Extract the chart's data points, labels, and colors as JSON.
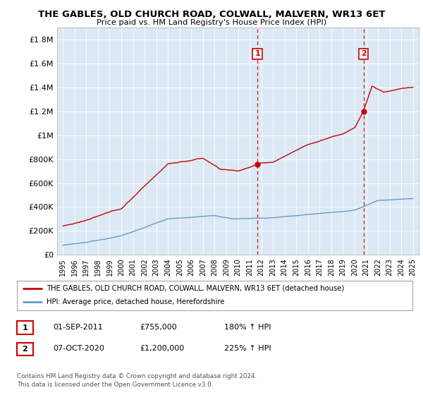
{
  "title": "THE GABLES, OLD CHURCH ROAD, COLWALL, MALVERN, WR13 6ET",
  "subtitle": "Price paid vs. HM Land Registry's House Price Index (HPI)",
  "background_color": "#ffffff",
  "plot_bg_color": "#dce9f5",
  "hpi_color": "#6699cc",
  "price_color": "#cc0000",
  "marker1_date_x": 2011.67,
  "marker1_price": 755000,
  "marker2_date_x": 2020.77,
  "marker2_price": 1200000,
  "ylim_min": 0,
  "ylim_max": 1900000,
  "yticks": [
    0,
    200000,
    400000,
    600000,
    800000,
    1000000,
    1200000,
    1400000,
    1600000,
    1800000
  ],
  "ytick_labels": [
    "£0",
    "£200K",
    "£400K",
    "£600K",
    "£800K",
    "£1M",
    "£1.2M",
    "£1.4M",
    "£1.6M",
    "£1.8M"
  ],
  "xlim_min": 1994.5,
  "xlim_max": 2025.5,
  "legend_label_red": "THE GABLES, OLD CHURCH ROAD, COLWALL, MALVERN, WR13 6ET (detached house)",
  "legend_label_blue": "HPI: Average price, detached house, Herefordshire",
  "table_row1": [
    "1",
    "01-SEP-2011",
    "£755,000",
    "180% ↑ HPI"
  ],
  "table_row2": [
    "2",
    "07-OCT-2020",
    "£1,200,000",
    "225% ↑ HPI"
  ],
  "footer": "Contains HM Land Registry data © Crown copyright and database right 2024.\nThis data is licensed under the Open Government Licence v3.0.",
  "xtick_years": [
    1995,
    1996,
    1997,
    1998,
    1999,
    2000,
    2001,
    2002,
    2003,
    2004,
    2005,
    2006,
    2007,
    2008,
    2009,
    2010,
    2011,
    2012,
    2013,
    2014,
    2015,
    2016,
    2017,
    2018,
    2019,
    2020,
    2021,
    2022,
    2023,
    2024,
    2025
  ]
}
